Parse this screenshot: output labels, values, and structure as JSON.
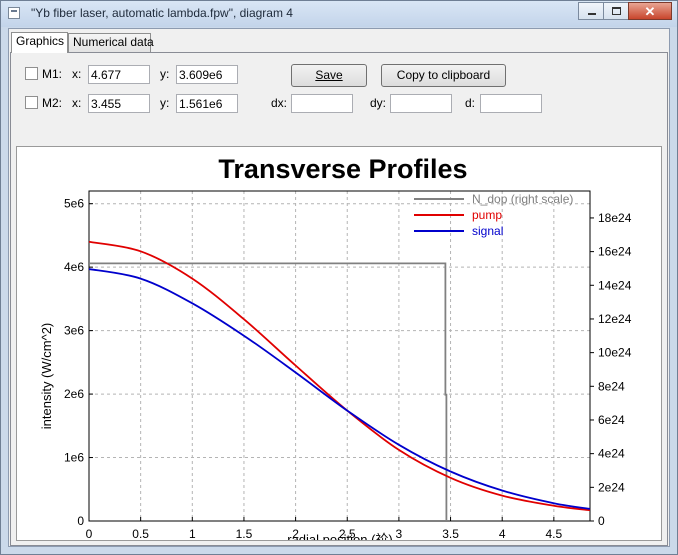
{
  "window": {
    "title": "\"Yb fiber laser, automatic lambda.fpw\", diagram 4"
  },
  "tabs": [
    {
      "label": "Graphics",
      "active": true
    },
    {
      "label": "Numerical data",
      "active": false
    }
  ],
  "markers": {
    "m1": {
      "label": "M1:",
      "x_label": "x:",
      "x_value": "4.677",
      "y_label": "y:",
      "y_value": "3.609e6"
    },
    "m2": {
      "label": "M2:",
      "x_label": "x:",
      "x_value": "3.455",
      "y_label": "y:",
      "y_value": "1.561e6"
    }
  },
  "buttons": {
    "save": "Save",
    "copy": "Copy to clipboard"
  },
  "deltas": {
    "dx_label": "dx:",
    "dy_label": "dy:",
    "d_label": "d:",
    "dx_value": "",
    "dy_value": "",
    "d_value": ""
  },
  "chart_data": {
    "type": "line",
    "title": "Transverse Profiles",
    "xlabel": "radial position (祄)",
    "ylabel": "intensity (W/cm^2)",
    "xlim": [
      0,
      4.85
    ],
    "ylim": [
      0,
      5200000.0
    ],
    "y2lim": [
      0,
      1.96e+25
    ],
    "x_ticks": [
      0,
      0.5,
      1,
      1.5,
      2,
      2.5,
      3,
      3.5,
      4,
      4.5
    ],
    "x_tick_labels": [
      "0",
      "0.5",
      "1",
      "1.5",
      "2",
      "2.5",
      "3",
      "3.5",
      "4",
      "4.5"
    ],
    "y_ticks": [
      0,
      1000000.0,
      2000000.0,
      3000000.0,
      4000000.0,
      5000000.0
    ],
    "y_tick_labels": [
      "0",
      "1e6",
      "2e6",
      "3e6",
      "4e6",
      "5e6"
    ],
    "y2_ticks": [
      0,
      2e+24,
      4e+24,
      6e+24,
      8e+24,
      1e+25,
      1.2e+25,
      1.4e+25,
      1.6e+25,
      1.8e+25
    ],
    "y2_tick_labels": [
      "0",
      "2e24",
      "4e24",
      "6e24",
      "8e24",
      "10e24",
      "12e24",
      "14e24",
      "16e24",
      "18e24"
    ],
    "grid": true,
    "legend": "top-right",
    "series": [
      {
        "name": "N_dop (right scale)",
        "color": "#808080",
        "axis": "right",
        "x": [
          0,
          3.45,
          3.45,
          3.46,
          3.46
        ],
        "y": [
          1.53e+25,
          1.53e+25,
          7.5e+24,
          7.5e+24,
          0
        ]
      },
      {
        "name": "pump",
        "color": "#e00000",
        "axis": "left",
        "x": [
          0,
          0.5,
          1,
          1.5,
          2,
          2.5,
          3,
          3.5,
          4,
          4.5,
          4.85
        ],
        "y": [
          4400000.0,
          4250000.0,
          3820000.0,
          3180000.0,
          2450000.0,
          1740000.0,
          1120000.0,
          680000.0,
          400000.0,
          240000.0,
          170000.0
        ]
      },
      {
        "name": "signal",
        "color": "#0000cc",
        "axis": "left",
        "x": [
          0,
          0.5,
          1,
          1.5,
          2,
          2.5,
          3,
          3.5,
          4,
          4.5,
          4.85
        ],
        "y": [
          3970000.0,
          3820000.0,
          3430000.0,
          2920000.0,
          2340000.0,
          1740000.0,
          1200000.0,
          780000.0,
          480000.0,
          280000.0,
          190000.0
        ]
      }
    ]
  }
}
